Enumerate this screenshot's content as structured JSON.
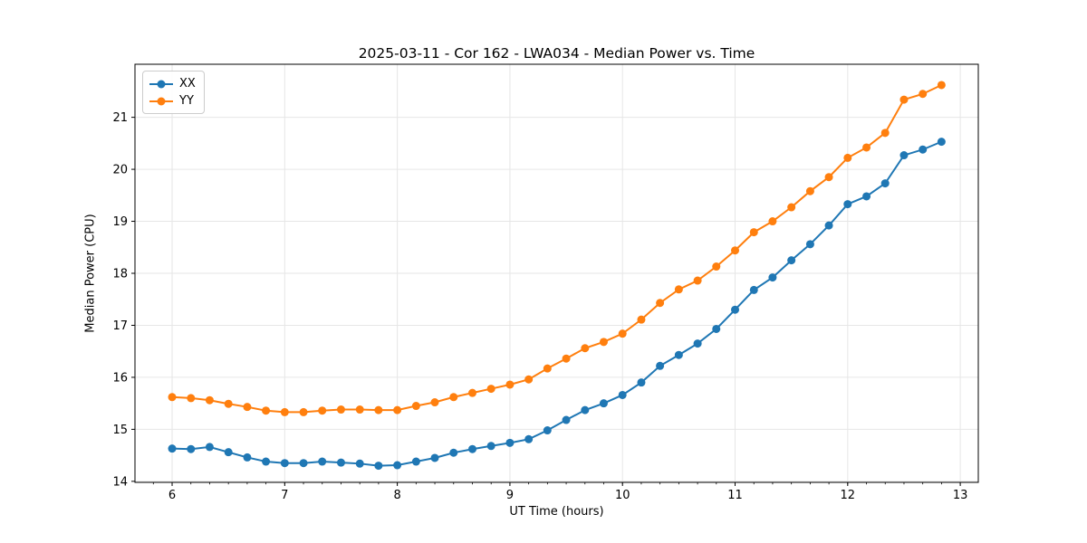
{
  "figure": {
    "background": "#ffffff"
  },
  "style": {
    "grid_color": "#e6e6e6",
    "spine_color": "#000000",
    "tick_color": "#000000",
    "tick_label_color": "#000000",
    "line_width": 2,
    "marker_radius": 4.5,
    "tick_font_size": 13
  },
  "chart_data": {
    "type": "line",
    "title": "2025-03-11 - Cor 162 - LWA034 - Median Power vs. Time",
    "xlabel": "UT Time (hours)",
    "ylabel": "Median Power (CPU)",
    "xlim": [
      5.67,
      13.16
    ],
    "ylim": [
      13.98,
      22.02
    ],
    "x_ticks": [
      6,
      7,
      8,
      9,
      10,
      11,
      12,
      13
    ],
    "y_ticks": [
      14,
      15,
      16,
      17,
      18,
      19,
      20,
      21
    ],
    "x_minor_step": 0.1666667,
    "grid": true,
    "legend_position": "upper left",
    "marker": "circle",
    "x": [
      6.0,
      6.167,
      6.333,
      6.5,
      6.667,
      6.833,
      7.0,
      7.167,
      7.333,
      7.5,
      7.667,
      7.833,
      8.0,
      8.167,
      8.333,
      8.5,
      8.667,
      8.833,
      9.0,
      9.167,
      9.333,
      9.5,
      9.667,
      9.833,
      10.0,
      10.167,
      10.333,
      10.5,
      10.667,
      10.833,
      11.0,
      11.167,
      11.333,
      11.5,
      11.667,
      11.833,
      12.0,
      12.167,
      12.333,
      12.5,
      12.667,
      12.833
    ],
    "series": [
      {
        "name": "XX",
        "color": "#1f77b4",
        "values": [
          14.63,
          14.62,
          14.66,
          14.56,
          14.46,
          14.38,
          14.35,
          14.35,
          14.38,
          14.36,
          14.34,
          14.3,
          14.31,
          14.38,
          14.45,
          14.55,
          14.62,
          14.68,
          14.74,
          14.81,
          14.98,
          15.18,
          15.37,
          15.5,
          15.66,
          15.9,
          16.22,
          16.43,
          16.65,
          16.93,
          17.3,
          17.68,
          17.92,
          18.25,
          18.56,
          18.92,
          19.33,
          19.48,
          19.73,
          20.27,
          20.38,
          20.53
        ]
      },
      {
        "name": "YY",
        "color": "#ff7f0e",
        "values": [
          15.62,
          15.6,
          15.56,
          15.49,
          15.43,
          15.36,
          15.33,
          15.33,
          15.36,
          15.38,
          15.38,
          15.37,
          15.37,
          15.45,
          15.52,
          15.62,
          15.7,
          15.78,
          15.86,
          15.96,
          16.17,
          16.36,
          16.56,
          16.68,
          16.84,
          17.11,
          17.43,
          17.69,
          17.86,
          18.13,
          18.44,
          18.79,
          19.0,
          19.27,
          19.58,
          19.85,
          20.22,
          20.42,
          20.7,
          21.34,
          21.45,
          21.62
        ]
      }
    ]
  }
}
